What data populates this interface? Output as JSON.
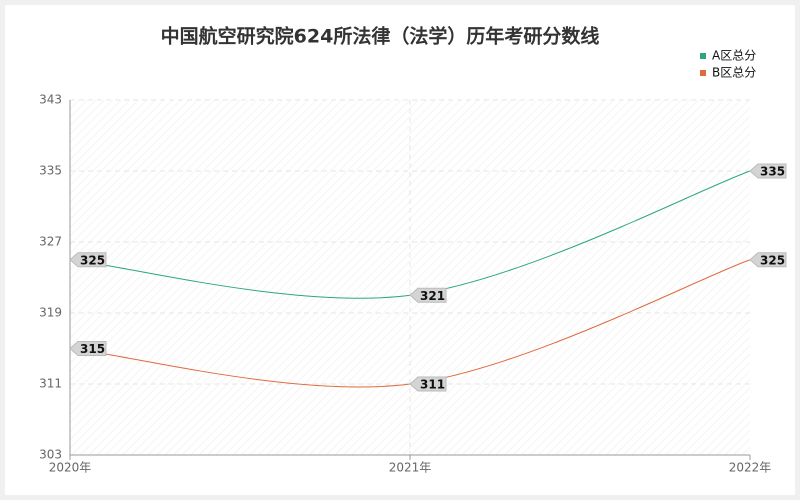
{
  "chart_data": {
    "type": "line",
    "title": "中国航空研究院624所法律（法学）历年考研分数线",
    "categories": [
      "2020年",
      "2021年",
      "2022年"
    ],
    "series": [
      {
        "name": "A区总分",
        "color": "#2aa77d",
        "values": [
          325,
          321,
          335
        ]
      },
      {
        "name": "B区总分",
        "color": "#e0693e",
        "values": [
          315,
          311,
          325
        ]
      }
    ],
    "ylim": [
      303,
      343
    ],
    "yticks": [
      303,
      311,
      319,
      327,
      335,
      343
    ],
    "grid": true,
    "smooth": true,
    "legend": "top-right"
  }
}
